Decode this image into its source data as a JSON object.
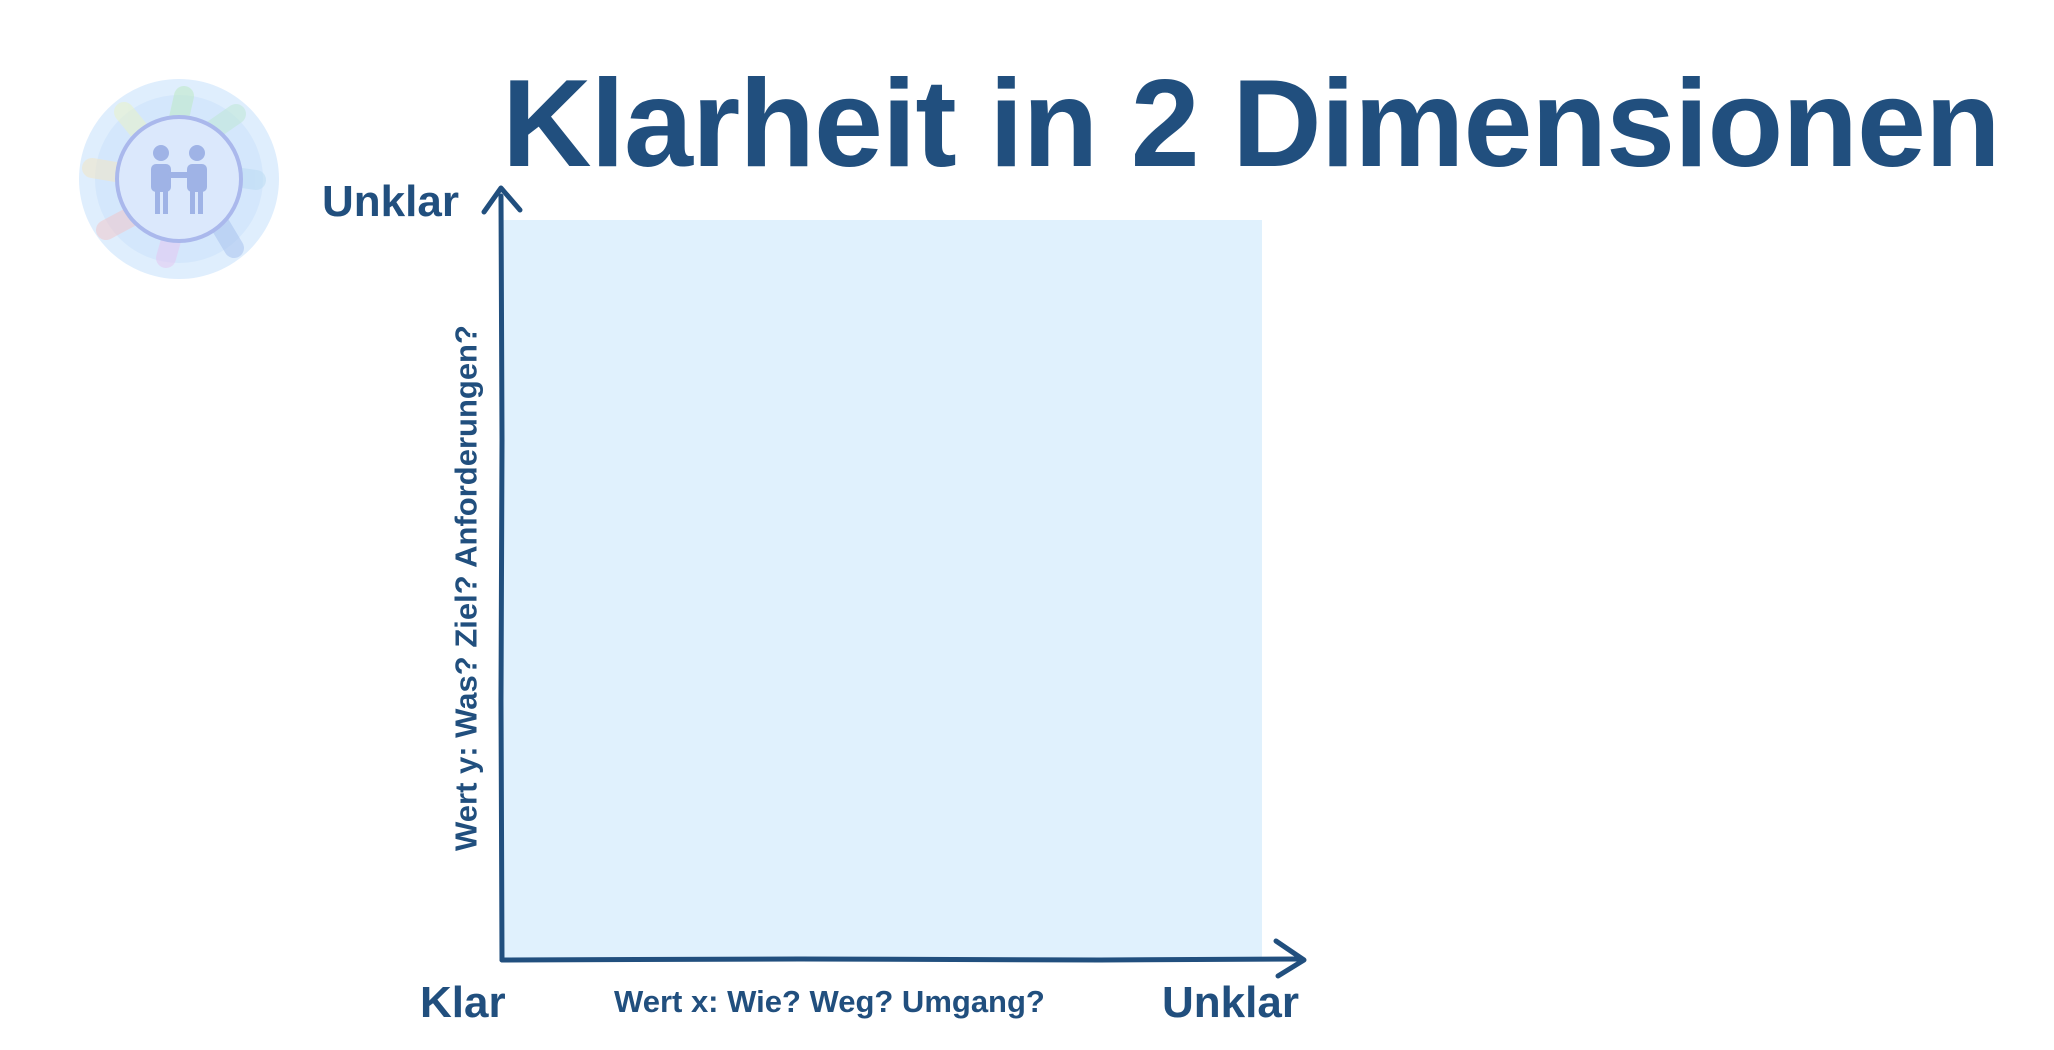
{
  "title": "Klarheit in 2 Dimensionen",
  "chart_data": {
    "type": "scatter",
    "title": "Klarheit in 2 Dimensionen",
    "xlabel": "Wert x: Wie? Weg? Umgang?",
    "ylabel": "Wert y: Was? Ziel? Anforderungen?",
    "x_axis": {
      "start_label": "Klar",
      "end_label": "Unklar"
    },
    "y_axis": {
      "start_label": "Klar",
      "end_label": "Unklar"
    },
    "points": [],
    "grid": false,
    "legend": "none"
  },
  "logo": {
    "icon": "handshake-circle-logo-icon"
  },
  "colors": {
    "text": "#214f7e",
    "axis": "#214f7e",
    "plot_background": "#e0f1fd"
  }
}
